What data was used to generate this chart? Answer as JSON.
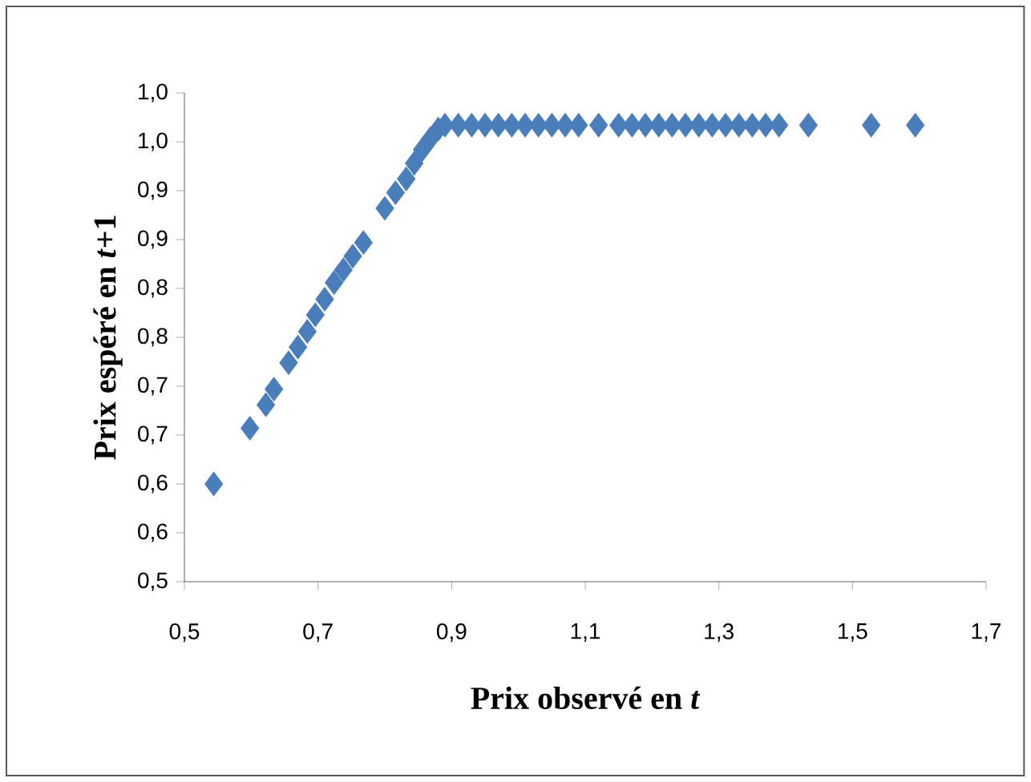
{
  "chart_data": {
    "type": "scatter",
    "xlabel": "Prix observé en *t*",
    "ylabel": "Prix espéré en *t*+1",
    "x": [
      0.544,
      0.598,
      0.622,
      0.634,
      0.656,
      0.67,
      0.684,
      0.696,
      0.71,
      0.724,
      0.738,
      0.752,
      0.768,
      0.8,
      0.816,
      0.832,
      0.844,
      0.856,
      0.868,
      0.88,
      0.89,
      0.91,
      0.93,
      0.95,
      0.97,
      0.99,
      1.01,
      1.03,
      1.05,
      1.07,
      1.09,
      1.12,
      1.15,
      1.17,
      1.19,
      1.21,
      1.23,
      1.25,
      1.27,
      1.29,
      1.31,
      1.33,
      1.35,
      1.37,
      1.39,
      1.434,
      1.528,
      1.594
    ],
    "values": [
      0.6,
      0.657,
      0.681,
      0.697,
      0.724,
      0.74,
      0.756,
      0.773,
      0.789,
      0.806,
      0.819,
      0.833,
      0.847,
      0.882,
      0.898,
      0.912,
      0.928,
      0.942,
      0.953,
      0.963,
      0.967,
      0.967,
      0.967,
      0.967,
      0.967,
      0.967,
      0.967,
      0.967,
      0.967,
      0.967,
      0.967,
      0.967,
      0.967,
      0.967,
      0.967,
      0.967,
      0.967,
      0.967,
      0.967,
      0.967,
      0.967,
      0.967,
      0.967,
      0.967,
      0.967,
      0.967,
      0.967,
      0.967
    ],
    "color": "#4a7ebb",
    "marker": "diamond",
    "grid": false,
    "xlim": [
      0.5,
      1.7
    ],
    "xticks": [
      {
        "value": 0.5,
        "label": "0,5"
      },
      {
        "value": 0.7,
        "label": "0,7"
      },
      {
        "value": 0.9,
        "label": "0,9"
      },
      {
        "value": 1.1,
        "label": "1,1"
      },
      {
        "value": 1.3,
        "label": "1,3"
      },
      {
        "value": 1.5,
        "label": "1,5"
      },
      {
        "value": 1.7,
        "label": "1,7"
      }
    ],
    "ylim": [
      0.5,
      1.0
    ],
    "yticks": [
      {
        "value": 0.5,
        "label": "0,5"
      },
      {
        "value": 0.55,
        "label": "0,6"
      },
      {
        "value": 0.6,
        "label": "0,6"
      },
      {
        "value": 0.65,
        "label": "0,7"
      },
      {
        "value": 0.7,
        "label": "0,7"
      },
      {
        "value": 0.75,
        "label": "0,8"
      },
      {
        "value": 0.8,
        "label": "0,8"
      },
      {
        "value": 0.85,
        "label": "0,9"
      },
      {
        "value": 0.9,
        "label": "0,9"
      },
      {
        "value": 0.95,
        "label": "1,0"
      },
      {
        "value": 1.0,
        "label": "1,0"
      }
    ]
  }
}
